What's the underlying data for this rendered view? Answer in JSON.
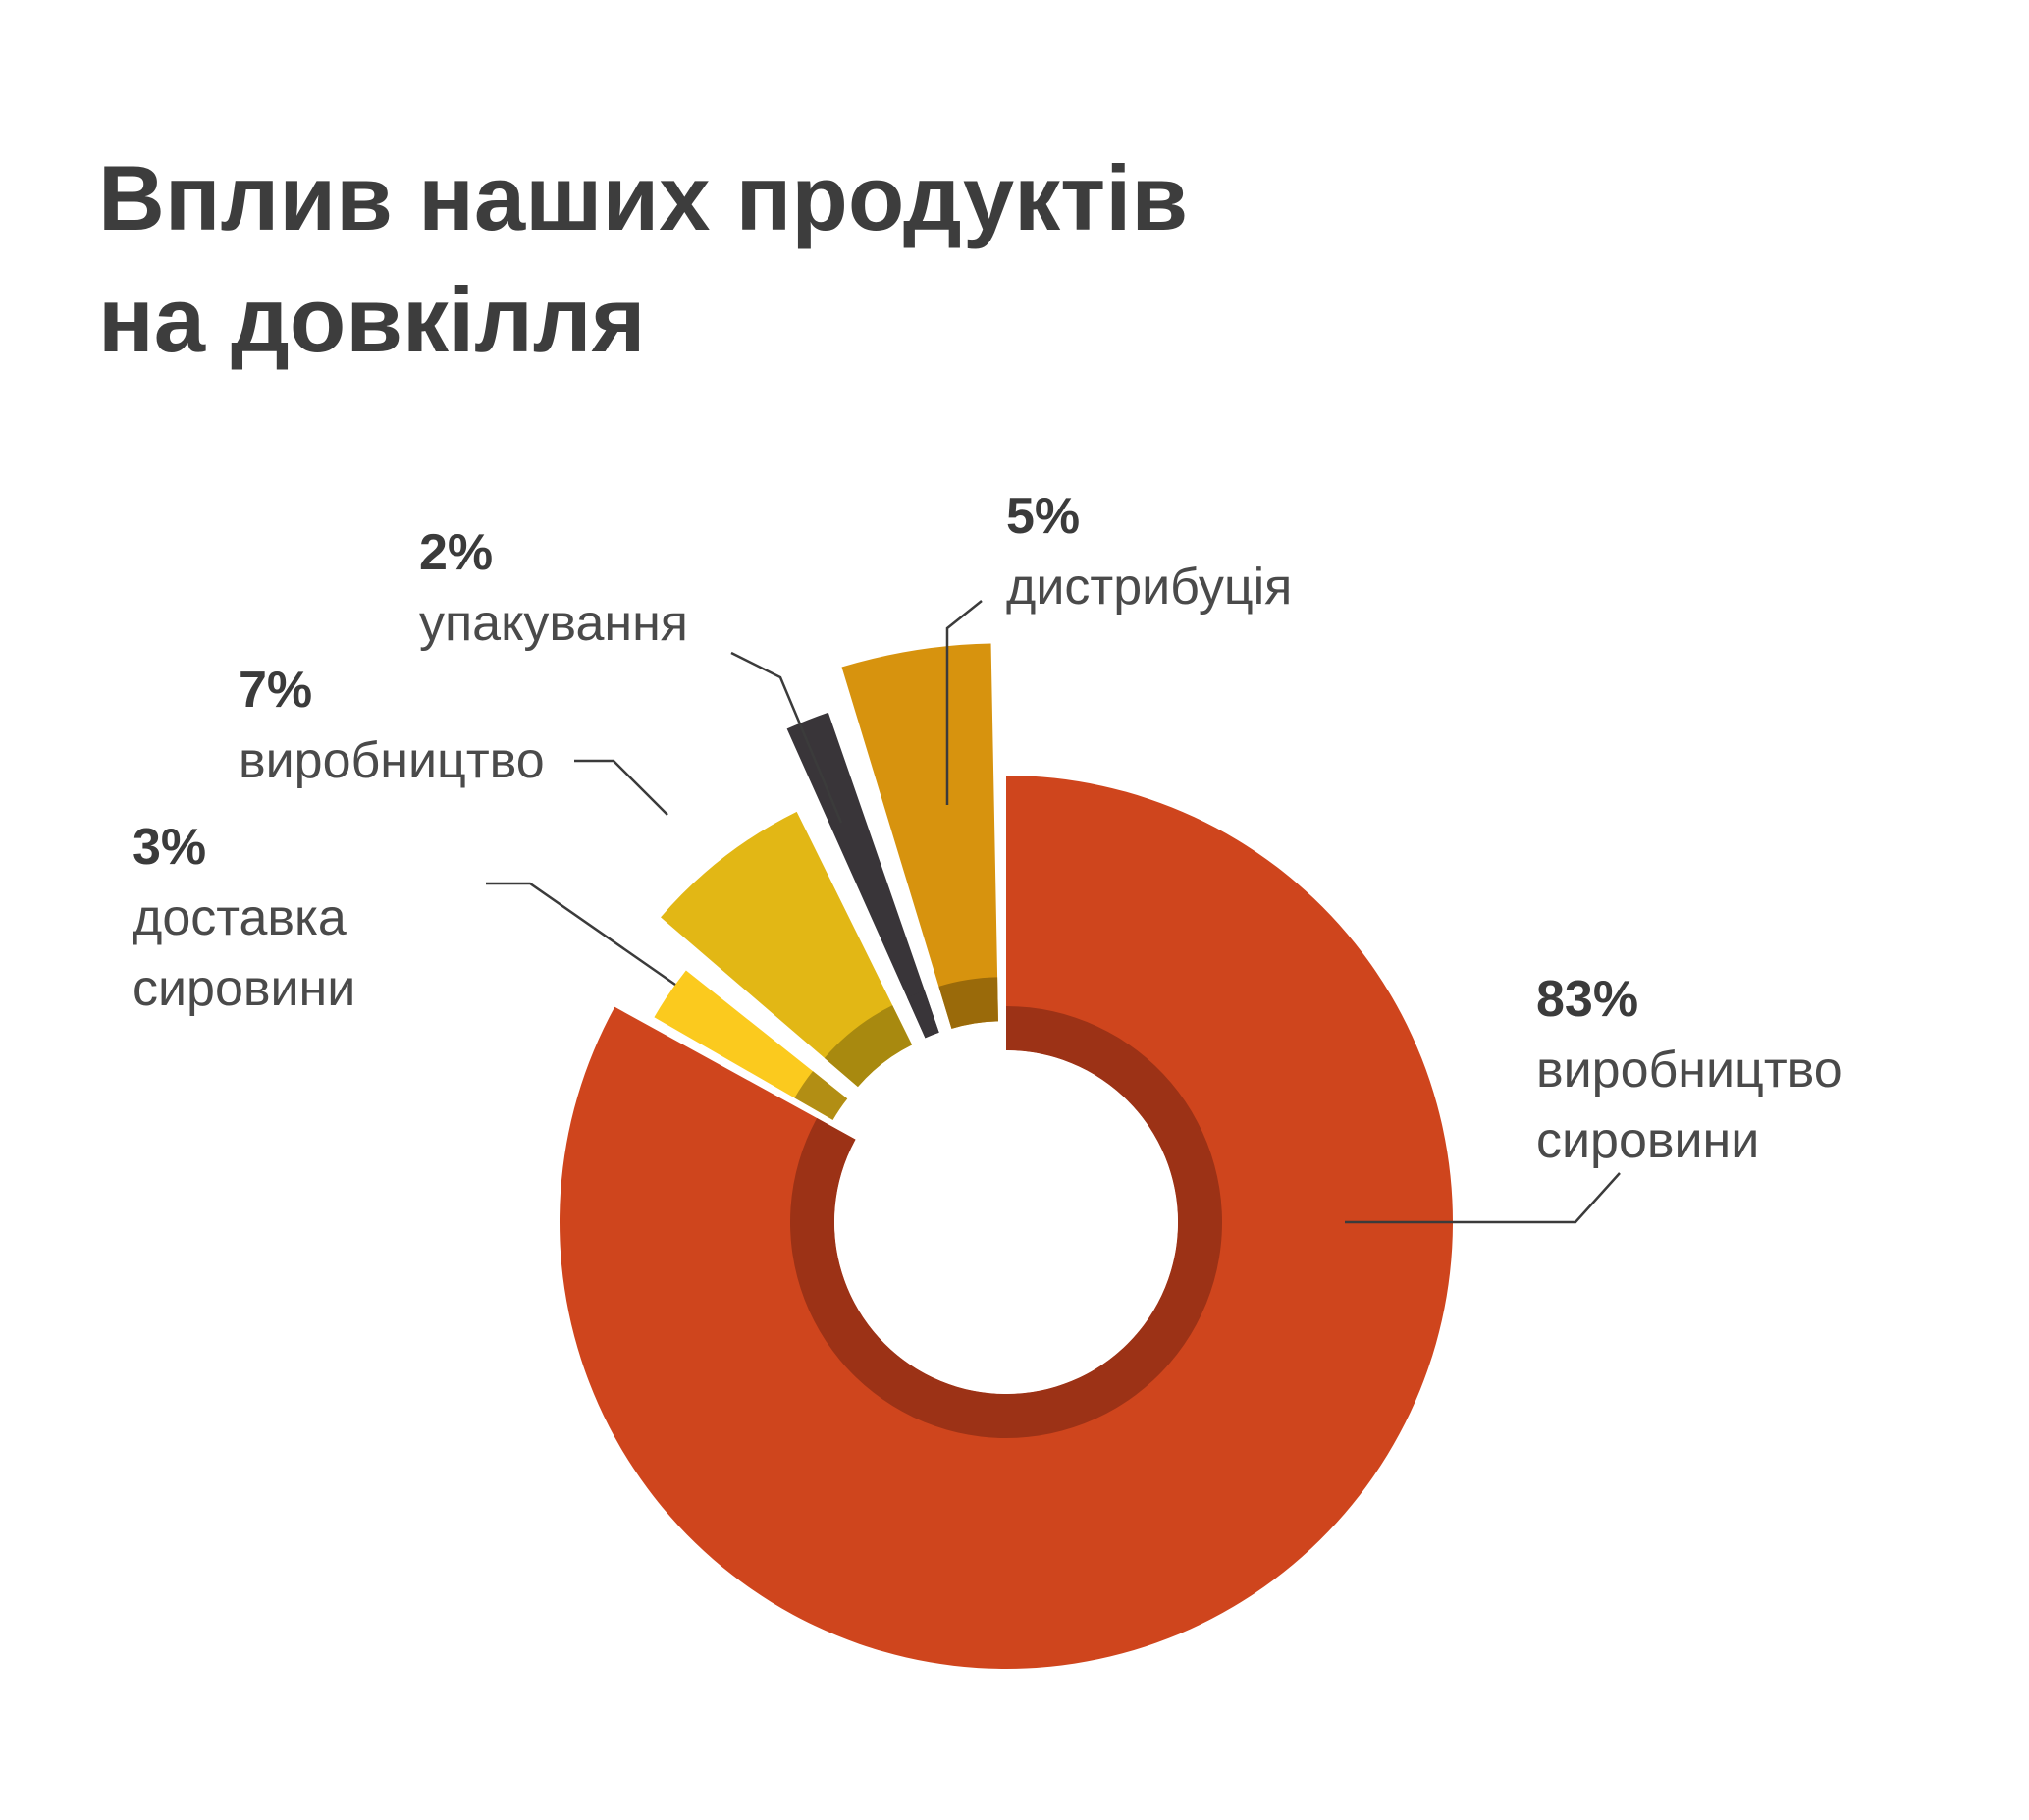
{
  "title_line1": "Вплив наших продуктів",
  "title_line2": "на довкілля",
  "chart_data": {
    "type": "pie",
    "title": "Вплив наших продуктів на довкілля",
    "unit": "%",
    "slices": [
      {
        "name": "виробництво сировини",
        "value": 83,
        "label": "83%",
        "label_lines": [
          "виробництво",
          "сировини"
        ],
        "color": "#cf451d",
        "inner_color": "#9c3216"
      },
      {
        "name": "доставка сировини",
        "value": 3,
        "label": "3%",
        "label_lines": [
          "доставка",
          "сировини"
        ],
        "color": "#fbca1e",
        "inner_color": "#b28e14"
      },
      {
        "name": "виробництво",
        "value": 7,
        "label": "7%",
        "label_lines": [
          "виробництво"
        ],
        "color": "#e2b715",
        "inner_color": "#a8890f"
      },
      {
        "name": "упакування",
        "value": 2,
        "label": "2%",
        "label_lines": [
          "упакування"
        ],
        "color": "#393539",
        "inner_color": "#393539"
      },
      {
        "name": "дистрибуція",
        "value": 5,
        "label": "5%",
        "label_lines": [
          "дистрибуція"
        ],
        "color": "#d7930e",
        "inner_color": "#9a6a0a"
      }
    ]
  }
}
